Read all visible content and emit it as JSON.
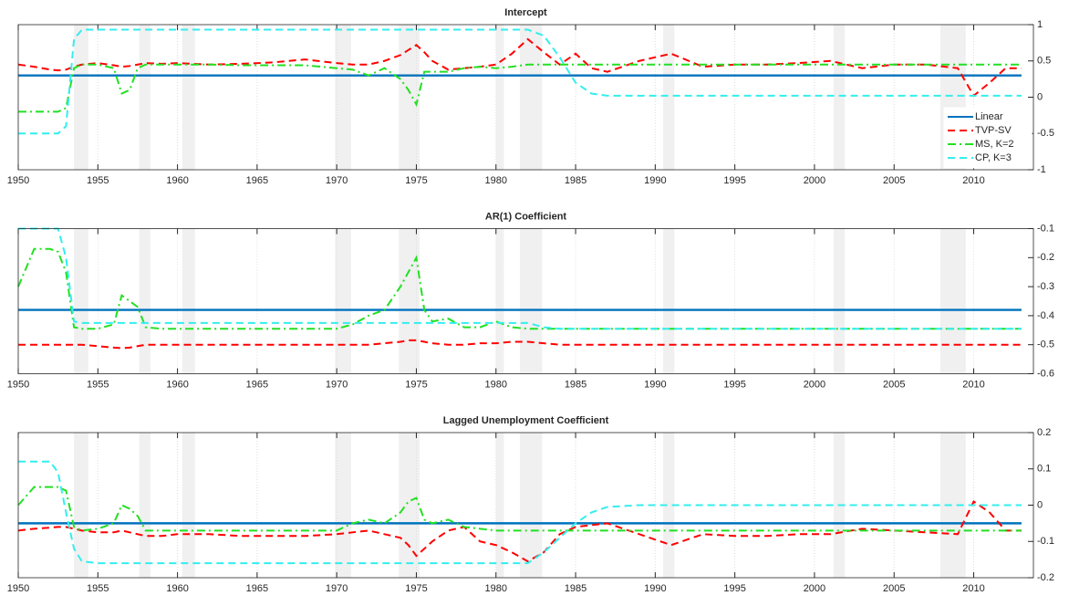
{
  "chart_data": [
    {
      "type": "line",
      "title": "Intercept",
      "x": [
        1950,
        1951,
        1952,
        1952.5,
        1953,
        1953.5,
        1954,
        1955,
        1956,
        1956.5,
        1957,
        1957.5,
        1958,
        1959,
        1960,
        1962,
        1964,
        1966,
        1968,
        1970,
        1971,
        1972,
        1973,
        1974,
        1974.5,
        1975,
        1975.5,
        1976,
        1977,
        1978,
        1979,
        1980,
        1981,
        1982,
        1983,
        1984,
        1985,
        1986,
        1987,
        1989,
        1991,
        1993,
        1995,
        1997,
        1999,
        2001,
        2003,
        2005,
        2007,
        2009,
        2010,
        2011,
        2012,
        2013
      ],
      "xlim": [
        1950,
        2013.75
      ],
      "xticks": [
        1950,
        1955,
        1960,
        1965,
        1970,
        1975,
        1980,
        1985,
        1990,
        1995,
        2000,
        2005,
        2010
      ],
      "ylim": [
        -1,
        1
      ],
      "yticks": [
        -1,
        -0.5,
        0,
        0.5,
        1
      ],
      "y_axis_side": "right",
      "grid": "x",
      "legend": "lower right",
      "shaded": [
        [
          1953.5,
          1954.4
        ],
        [
          1957.6,
          1958.3
        ],
        [
          1960.3,
          1961.1
        ],
        [
          1969.9,
          1970.9
        ],
        [
          1973.9,
          1975.2
        ],
        [
          1980.0,
          1980.5
        ],
        [
          1981.5,
          1982.9
        ],
        [
          1990.5,
          1991.2
        ],
        [
          2001.2,
          2001.9
        ],
        [
          2007.9,
          2009.5
        ]
      ],
      "series": [
        {
          "name": "Linear",
          "color": "#0072bd",
          "style": "solid",
          "values": [
            0.3,
            0.3,
            0.3,
            0.3,
            0.3,
            0.3,
            0.3,
            0.3,
            0.3,
            0.3,
            0.3,
            0.3,
            0.3,
            0.3,
            0.3,
            0.3,
            0.3,
            0.3,
            0.3,
            0.3,
            0.3,
            0.3,
            0.3,
            0.3,
            0.3,
            0.3,
            0.3,
            0.3,
            0.3,
            0.3,
            0.3,
            0.3,
            0.3,
            0.3,
            0.3,
            0.3,
            0.3,
            0.3,
            0.3,
            0.3,
            0.3,
            0.3,
            0.3,
            0.3,
            0.3,
            0.3,
            0.3,
            0.3,
            0.3,
            0.3,
            0.3,
            0.3,
            0.3,
            0.3
          ]
        },
        {
          "name": "TVP-SV",
          "color": "#ff0000",
          "style": "dashed",
          "values": [
            0.45,
            0.42,
            0.38,
            0.37,
            0.38,
            0.42,
            0.45,
            0.47,
            0.44,
            0.42,
            0.43,
            0.45,
            0.47,
            0.46,
            0.47,
            0.45,
            0.46,
            0.48,
            0.52,
            0.47,
            0.45,
            0.45,
            0.5,
            0.58,
            0.65,
            0.72,
            0.62,
            0.5,
            0.38,
            0.4,
            0.42,
            0.45,
            0.6,
            0.8,
            0.62,
            0.45,
            0.6,
            0.4,
            0.35,
            0.5,
            0.6,
            0.42,
            0.45,
            0.45,
            0.47,
            0.5,
            0.4,
            0.45,
            0.45,
            0.4,
            0.02,
            0.2,
            0.4,
            0.4
          ]
        },
        {
          "name": "MS, K=2",
          "color": "#22e022",
          "style": "dashdot",
          "values": [
            -0.2,
            -0.2,
            -0.2,
            -0.2,
            -0.15,
            0.4,
            0.45,
            0.45,
            0.4,
            0.05,
            0.1,
            0.4,
            0.45,
            0.45,
            0.45,
            0.45,
            0.44,
            0.44,
            0.44,
            0.4,
            0.38,
            0.3,
            0.4,
            0.25,
            0.1,
            -0.1,
            0.35,
            0.35,
            0.35,
            0.4,
            0.42,
            0.4,
            0.42,
            0.45,
            0.45,
            0.45,
            0.45,
            0.45,
            0.45,
            0.45,
            0.45,
            0.45,
            0.45,
            0.45,
            0.45,
            0.45,
            0.45,
            0.45,
            0.45,
            0.45,
            0.45,
            0.45,
            0.45,
            0.45
          ]
        },
        {
          "name": "CP, K=3",
          "color": "#33eeee",
          "style": "dashed",
          "values": [
            -0.5,
            -0.5,
            -0.5,
            -0.5,
            -0.4,
            0.8,
            0.93,
            0.93,
            0.93,
            0.93,
            0.93,
            0.93,
            0.93,
            0.93,
            0.93,
            0.93,
            0.93,
            0.93,
            0.93,
            0.93,
            0.93,
            0.93,
            0.93,
            0.93,
            0.93,
            0.93,
            0.93,
            0.93,
            0.93,
            0.93,
            0.93,
            0.93,
            0.93,
            0.93,
            0.85,
            0.55,
            0.2,
            0.05,
            0.02,
            0.02,
            0.02,
            0.02,
            0.02,
            0.02,
            0.02,
            0.02,
            0.02,
            0.02,
            0.02,
            0.02,
            0.02,
            0.02,
            0.02,
            0.02
          ]
        }
      ]
    },
    {
      "type": "line",
      "title": "AR(1) Coefficient",
      "x": [
        1950,
        1951,
        1952,
        1952.5,
        1953,
        1953.5,
        1954,
        1955,
        1956,
        1956.5,
        1957,
        1957.5,
        1958,
        1959,
        1960,
        1962,
        1964,
        1966,
        1968,
        1970,
        1971,
        1972,
        1973,
        1974,
        1974.5,
        1975,
        1975.5,
        1976,
        1977,
        1978,
        1979,
        1980,
        1981,
        1982,
        1983,
        1984,
        1985,
        1986,
        1987,
        1989,
        1991,
        1993,
        1995,
        1997,
        1999,
        2001,
        2003,
        2005,
        2007,
        2009,
        2010,
        2011,
        2012,
        2013
      ],
      "xlim": [
        1950,
        2013.75
      ],
      "xticks": [
        1950,
        1955,
        1960,
        1965,
        1970,
        1975,
        1980,
        1985,
        1990,
        1995,
        2000,
        2005,
        2010
      ],
      "ylim": [
        -0.6,
        -0.1
      ],
      "yticks": [
        -0.6,
        -0.5,
        -0.4,
        -0.3,
        -0.2,
        -0.1
      ],
      "y_axis_side": "right",
      "grid": "x",
      "shaded": [
        [
          1953.5,
          1954.4
        ],
        [
          1957.6,
          1958.3
        ],
        [
          1960.3,
          1961.1
        ],
        [
          1969.9,
          1970.9
        ],
        [
          1973.9,
          1975.2
        ],
        [
          1980.0,
          1980.5
        ],
        [
          1981.5,
          1982.9
        ],
        [
          1990.5,
          1991.2
        ],
        [
          2001.2,
          2001.9
        ],
        [
          2007.9,
          2009.5
        ]
      ],
      "series": [
        {
          "name": "Linear",
          "color": "#0072bd",
          "style": "solid",
          "values": [
            -0.38,
            -0.38,
            -0.38,
            -0.38,
            -0.38,
            -0.38,
            -0.38,
            -0.38,
            -0.38,
            -0.38,
            -0.38,
            -0.38,
            -0.38,
            -0.38,
            -0.38,
            -0.38,
            -0.38,
            -0.38,
            -0.38,
            -0.38,
            -0.38,
            -0.38,
            -0.38,
            -0.38,
            -0.38,
            -0.38,
            -0.38,
            -0.38,
            -0.38,
            -0.38,
            -0.38,
            -0.38,
            -0.38,
            -0.38,
            -0.38,
            -0.38,
            -0.38,
            -0.38,
            -0.38,
            -0.38,
            -0.38,
            -0.38,
            -0.38,
            -0.38,
            -0.38,
            -0.38,
            -0.38,
            -0.38,
            -0.38,
            -0.38,
            -0.38,
            -0.38,
            -0.38,
            -0.38
          ]
        },
        {
          "name": "TVP-SV",
          "color": "#ff0000",
          "style": "dashed",
          "values": [
            -0.5,
            -0.5,
            -0.5,
            -0.5,
            -0.5,
            -0.5,
            -0.5,
            -0.505,
            -0.51,
            -0.512,
            -0.51,
            -0.505,
            -0.5,
            -0.5,
            -0.5,
            -0.5,
            -0.5,
            -0.5,
            -0.5,
            -0.5,
            -0.5,
            -0.5,
            -0.495,
            -0.49,
            -0.485,
            -0.485,
            -0.49,
            -0.495,
            -0.5,
            -0.5,
            -0.495,
            -0.495,
            -0.49,
            -0.49,
            -0.495,
            -0.5,
            -0.5,
            -0.5,
            -0.5,
            -0.5,
            -0.5,
            -0.5,
            -0.5,
            -0.5,
            -0.5,
            -0.5,
            -0.5,
            -0.5,
            -0.5,
            -0.5,
            -0.5,
            -0.5,
            -0.5,
            -0.5
          ]
        },
        {
          "name": "MS, K=2",
          "color": "#22e022",
          "style": "dashdot",
          "values": [
            -0.3,
            -0.17,
            -0.17,
            -0.18,
            -0.25,
            -0.44,
            -0.445,
            -0.445,
            -0.43,
            -0.33,
            -0.35,
            -0.37,
            -0.44,
            -0.445,
            -0.445,
            -0.445,
            -0.445,
            -0.445,
            -0.445,
            -0.445,
            -0.43,
            -0.4,
            -0.38,
            -0.3,
            -0.25,
            -0.2,
            -0.38,
            -0.42,
            -0.41,
            -0.44,
            -0.44,
            -0.42,
            -0.44,
            -0.445,
            -0.445,
            -0.445,
            -0.445,
            -0.445,
            -0.445,
            -0.445,
            -0.445,
            -0.445,
            -0.445,
            -0.445,
            -0.445,
            -0.445,
            -0.445,
            -0.445,
            -0.445,
            -0.445,
            -0.445,
            -0.445,
            -0.445,
            -0.445
          ]
        },
        {
          "name": "CP, K=3",
          "color": "#33eeee",
          "style": "dashed",
          "values": [
            -0.1,
            -0.1,
            -0.1,
            -0.1,
            -0.2,
            -0.42,
            -0.425,
            -0.425,
            -0.425,
            -0.425,
            -0.425,
            -0.425,
            -0.425,
            -0.425,
            -0.425,
            -0.425,
            -0.425,
            -0.425,
            -0.425,
            -0.425,
            -0.425,
            -0.425,
            -0.425,
            -0.425,
            -0.425,
            -0.425,
            -0.425,
            -0.425,
            -0.425,
            -0.425,
            -0.425,
            -0.425,
            -0.425,
            -0.425,
            -0.44,
            -0.445,
            -0.445,
            -0.445,
            -0.445,
            -0.445,
            -0.445,
            -0.445,
            -0.445,
            -0.445,
            -0.445,
            -0.445,
            -0.445,
            -0.445,
            -0.445,
            -0.445,
            -0.445,
            -0.445,
            -0.445,
            -0.445
          ]
        }
      ]
    },
    {
      "type": "line",
      "title": "Lagged Unemployment Coefficient",
      "x": [
        1950,
        1951,
        1952,
        1952.5,
        1953,
        1953.5,
        1954,
        1955,
        1956,
        1956.5,
        1957,
        1957.5,
        1958,
        1959,
        1960,
        1962,
        1964,
        1966,
        1968,
        1970,
        1971,
        1972,
        1973,
        1974,
        1974.5,
        1975,
        1975.5,
        1976,
        1977,
        1978,
        1979,
        1980,
        1981,
        1982,
        1983,
        1984,
        1985,
        1986,
        1987,
        1989,
        1991,
        1993,
        1995,
        1997,
        1999,
        2001,
        2003,
        2005,
        2007,
        2009,
        2010,
        2011,
        2012,
        2013
      ],
      "xlim": [
        1950,
        2013.75
      ],
      "xticks": [
        1950,
        1955,
        1960,
        1965,
        1970,
        1975,
        1980,
        1985,
        1990,
        1995,
        2000,
        2005,
        2010
      ],
      "ylim": [
        -0.2,
        0.2
      ],
      "yticks": [
        -0.2,
        -0.1,
        0,
        0.1,
        0.2
      ],
      "y_axis_side": "right",
      "grid": "x",
      "shaded": [
        [
          1953.5,
          1954.4
        ],
        [
          1957.6,
          1958.3
        ],
        [
          1960.3,
          1961.1
        ],
        [
          1969.9,
          1970.9
        ],
        [
          1973.9,
          1975.2
        ],
        [
          1980.0,
          1980.5
        ],
        [
          1981.5,
          1982.9
        ],
        [
          1990.5,
          1991.2
        ],
        [
          2001.2,
          2001.9
        ],
        [
          2007.9,
          2009.5
        ]
      ],
      "series": [
        {
          "name": "Linear",
          "color": "#0072bd",
          "style": "solid",
          "values": [
            -0.05,
            -0.05,
            -0.05,
            -0.05,
            -0.05,
            -0.05,
            -0.05,
            -0.05,
            -0.05,
            -0.05,
            -0.05,
            -0.05,
            -0.05,
            -0.05,
            -0.05,
            -0.05,
            -0.05,
            -0.05,
            -0.05,
            -0.05,
            -0.05,
            -0.05,
            -0.05,
            -0.05,
            -0.05,
            -0.05,
            -0.05,
            -0.05,
            -0.05,
            -0.05,
            -0.05,
            -0.05,
            -0.05,
            -0.05,
            -0.05,
            -0.05,
            -0.05,
            -0.05,
            -0.05,
            -0.05,
            -0.05,
            -0.05,
            -0.05,
            -0.05,
            -0.05,
            -0.05,
            -0.05,
            -0.05,
            -0.05,
            -0.05,
            -0.05,
            -0.05,
            -0.05,
            -0.05
          ]
        },
        {
          "name": "TVP-SV",
          "color": "#ff0000",
          "style": "dashed",
          "values": [
            -0.07,
            -0.065,
            -0.062,
            -0.06,
            -0.06,
            -0.065,
            -0.07,
            -0.075,
            -0.075,
            -0.07,
            -0.075,
            -0.08,
            -0.085,
            -0.085,
            -0.08,
            -0.08,
            -0.085,
            -0.085,
            -0.085,
            -0.08,
            -0.075,
            -0.07,
            -0.08,
            -0.09,
            -0.11,
            -0.14,
            -0.12,
            -0.1,
            -0.07,
            -0.06,
            -0.1,
            -0.11,
            -0.13,
            -0.155,
            -0.13,
            -0.08,
            -0.06,
            -0.055,
            -0.05,
            -0.08,
            -0.11,
            -0.08,
            -0.085,
            -0.085,
            -0.08,
            -0.08,
            -0.065,
            -0.07,
            -0.075,
            -0.08,
            0.01,
            -0.02,
            -0.07,
            -0.07
          ]
        },
        {
          "name": "MS, K=2",
          "color": "#22e022",
          "style": "dashdot",
          "values": [
            0,
            0.05,
            0.05,
            0.05,
            0.04,
            -0.06,
            -0.07,
            -0.065,
            -0.05,
            0,
            -0.01,
            -0.03,
            -0.07,
            -0.07,
            -0.07,
            -0.07,
            -0.07,
            -0.07,
            -0.07,
            -0.07,
            -0.05,
            -0.04,
            -0.05,
            -0.02,
            0.01,
            0.02,
            -0.04,
            -0.05,
            -0.04,
            -0.06,
            -0.065,
            -0.07,
            -0.07,
            -0.07,
            -0.07,
            -0.07,
            -0.07,
            -0.07,
            -0.07,
            -0.07,
            -0.07,
            -0.07,
            -0.07,
            -0.07,
            -0.07,
            -0.07,
            -0.07,
            -0.07,
            -0.07,
            -0.07,
            -0.07,
            -0.07,
            -0.07,
            -0.07
          ]
        },
        {
          "name": "CP, K=3",
          "color": "#33eeee",
          "style": "dashed",
          "values": [
            0.12,
            0.12,
            0.12,
            0.09,
            -0.02,
            -0.12,
            -0.155,
            -0.16,
            -0.16,
            -0.16,
            -0.16,
            -0.16,
            -0.16,
            -0.16,
            -0.16,
            -0.16,
            -0.16,
            -0.16,
            -0.16,
            -0.16,
            -0.16,
            -0.16,
            -0.16,
            -0.16,
            -0.16,
            -0.16,
            -0.16,
            -0.16,
            -0.16,
            -0.16,
            -0.16,
            -0.16,
            -0.16,
            -0.16,
            -0.13,
            -0.09,
            -0.05,
            -0.02,
            -0.005,
            0,
            0,
            0,
            0,
            0,
            0,
            0,
            0,
            0,
            0,
            0,
            0,
            0,
            0,
            0
          ]
        }
      ]
    }
  ]
}
